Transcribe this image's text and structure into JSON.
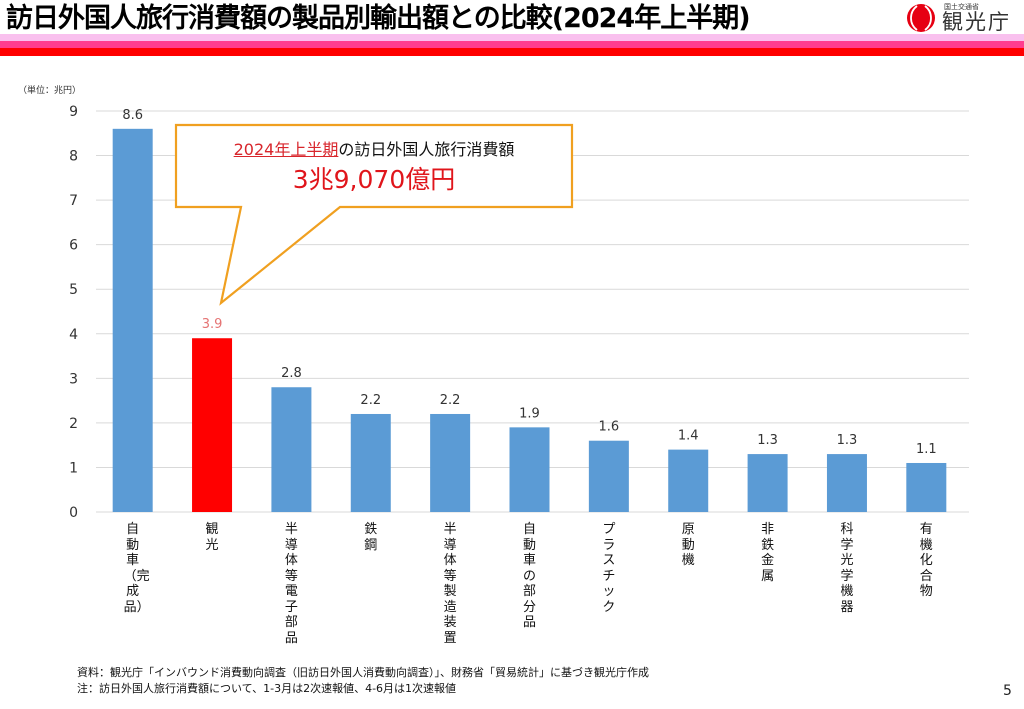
{
  "header": {
    "title": "訪日外国人旅行消費額の製品別輸出額との比較(2024年上半期)",
    "logo_small": "国土交通省",
    "logo_text": "観光庁",
    "stripe_colors": [
      "#f9c0ee",
      "#ff3d8e",
      "#ff0000"
    ]
  },
  "callout": {
    "highlight": "2024年上半期",
    "text": "の訪日外国人旅行消費額",
    "amount": "3兆9,070億円",
    "border_color": "#f0a020",
    "highlight_color": "#d8262c"
  },
  "chart_data": {
    "type": "bar",
    "title": "訪日外国人旅行消費額の製品別輸出額との比較(2024年上半期)",
    "unit_label": "（単位：兆円）",
    "xlabel": "",
    "ylabel": "",
    "ylim": [
      0,
      9
    ],
    "yticks": [
      "0",
      "1",
      "2",
      "3",
      "4",
      "5",
      "6",
      "7",
      "8",
      "9"
    ],
    "grid": true,
    "categories": [
      "自動車（完成品）",
      "観光",
      "半導体等電子部品",
      "鉄鋼",
      "半導体等製造装置",
      "自動車の部分品",
      "プラスチック",
      "原動機",
      "非鉄金属",
      "科学光学機器",
      "有機化合物"
    ],
    "values": [
      8.6,
      3.9,
      2.8,
      2.2,
      2.2,
      1.9,
      1.6,
      1.4,
      1.3,
      1.3,
      1.1
    ],
    "value_labels": [
      "8.6",
      "3.9",
      "2.8",
      "2.2",
      "2.2",
      "1.9",
      "1.6",
      "1.4",
      "1.3",
      "1.3",
      "1.1"
    ],
    "highlight_index": 1,
    "bar_color": "#5b9bd5",
    "highlight_color": "#ff0000",
    "highlight_label_color": "#e57373"
  },
  "footer": {
    "source": "資料：観光庁「インバウンド消費動向調査（旧訪日外国人消費動向調査）」、財務省「貿易統計」に基づき観光庁作成",
    "note": "注：訪日外国人旅行消費額について、1-3月は2次速報値、4-6月は1次速報値",
    "page_number": "5"
  }
}
